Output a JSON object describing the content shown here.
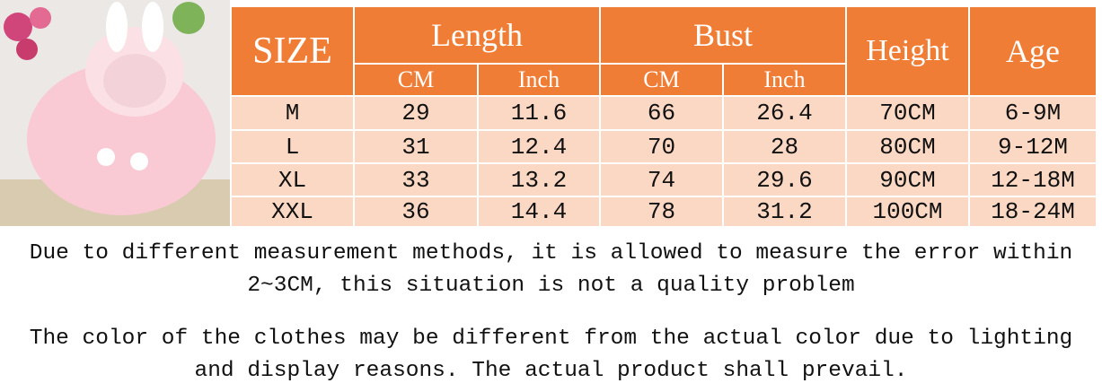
{
  "header": {
    "size": "SIZE",
    "length": "Length",
    "bust": "Bust",
    "height": "Height",
    "age": "Age",
    "length_units": [
      "CM",
      "Inch"
    ],
    "bust_units": [
      "CM",
      "Inch"
    ]
  },
  "table": {
    "rows": [
      [
        "M",
        29,
        11.6,
        66,
        26.4,
        "70CM",
        "6-9M"
      ],
      [
        "L",
        31,
        12.4,
        70,
        28,
        "80CM",
        "9-12M"
      ],
      [
        "XL",
        33,
        13.2,
        74,
        29.6,
        "90CM",
        "12-18M"
      ],
      [
        "XXL",
        36,
        14.4,
        78,
        31.2,
        "100CM",
        "18-24M"
      ]
    ]
  },
  "notes": [
    "Due to different measurement methods, it is allowed to measure the error within 2~3CM, this situation is not a quality problem",
    "The color of the clothes may be different from the actual color due to lighting and display reasons. The actual product shall prevail."
  ]
}
